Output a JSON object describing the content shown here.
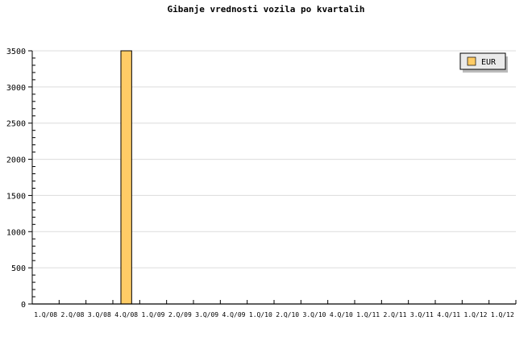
{
  "chart_data": {
    "type": "bar",
    "title": "Gibanje vrednosti vozila po kvartalih",
    "xlabel": "",
    "ylabel": "",
    "categories": [
      "1.Q/08",
      "2.Q/08",
      "3.Q/08",
      "4.Q/08",
      "1.Q/09",
      "2.Q/09",
      "3.Q/09",
      "4.Q/09",
      "1.Q/10",
      "2.Q/10",
      "3.Q/10",
      "4.Q/10",
      "1.Q/11",
      "2.Q/11",
      "3.Q/11",
      "4.Q/11",
      "1.Q/12",
      "1.Q/12"
    ],
    "series": [
      {
        "name": "EUR",
        "color": "#ffcc66",
        "values": [
          0,
          0,
          0,
          3500,
          0,
          0,
          0,
          0,
          0,
          0,
          0,
          0,
          0,
          0,
          0,
          0,
          0,
          0
        ]
      }
    ],
    "ylim": [
      0,
      3500
    ],
    "yticks": [
      0,
      500,
      1000,
      1500,
      2000,
      2500,
      3000,
      3500
    ],
    "grid": true,
    "legend": "top-right"
  }
}
